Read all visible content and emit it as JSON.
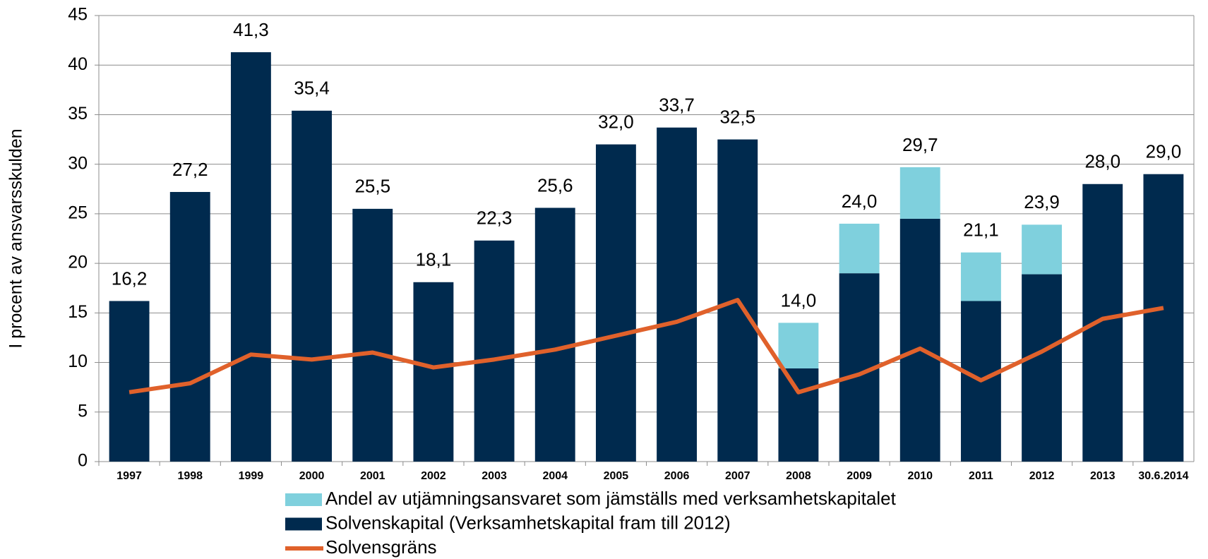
{
  "chart_data": {
    "type": "bar",
    "stacked": true,
    "y_label": "I procent av ansvarsskulden",
    "categories": [
      "1997",
      "1998",
      "1999",
      "2000",
      "2001",
      "2002",
      "2003",
      "2004",
      "2005",
      "2006",
      "2007",
      "2008",
      "2009",
      "2010",
      "2011",
      "2012",
      "2013",
      "30.6.2014"
    ],
    "series": [
      {
        "name": "Solvenskapital (Verksamhetskapital fram till 2012)",
        "color": "#002a4e",
        "type": "bar",
        "values": [
          16.2,
          27.2,
          41.3,
          35.4,
          25.5,
          18.1,
          22.3,
          25.6,
          32.0,
          33.7,
          32.5,
          9.4,
          19.0,
          24.5,
          16.2,
          18.9,
          28.0,
          29.0
        ]
      },
      {
        "name": "Andel av utjämningsansvaret som jämställs med verksamhetskapitalet",
        "color": "#7fd0dd",
        "type": "bar",
        "values": [
          0,
          0,
          0,
          0,
          0,
          0,
          0,
          0,
          0,
          0,
          0,
          4.6,
          5.0,
          5.2,
          4.9,
          5.0,
          0,
          0
        ]
      },
      {
        "name": "Solvensgräns",
        "color": "#e0612b",
        "type": "line",
        "values": [
          7.0,
          7.9,
          10.8,
          10.3,
          11.0,
          9.5,
          10.3,
          11.3,
          12.7,
          14.1,
          16.3,
          7.0,
          8.8,
          11.4,
          8.2,
          11.1,
          14.4,
          15.5
        ]
      }
    ],
    "totals": {
      "values": [
        16.2,
        27.2,
        41.3,
        35.4,
        25.5,
        18.1,
        22.3,
        25.6,
        32.0,
        33.7,
        32.5,
        14.0,
        24.0,
        29.7,
        21.1,
        23.9,
        28.0,
        29.0
      ],
      "value_labels": [
        "16,2",
        "27,2",
        "41,3",
        "35,4",
        "25,5",
        "18,1",
        "22,3",
        "25,6",
        "32,0",
        "33,7",
        "32,5",
        "14,0",
        "24,0",
        "29,7",
        "21,1",
        "23,9",
        "28,0",
        "29,0"
      ]
    },
    "ylim": [
      0,
      45
    ],
    "yticks": [
      0,
      5,
      10,
      15,
      20,
      25,
      30,
      35,
      40,
      45
    ],
    "grid": true
  }
}
